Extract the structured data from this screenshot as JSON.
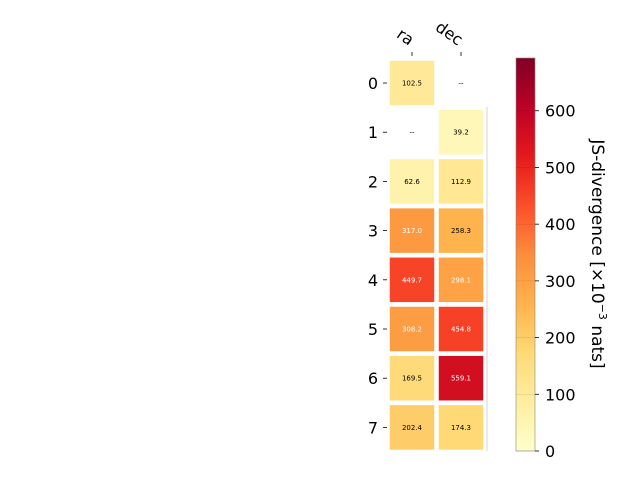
{
  "chart_data": {
    "type": "heatmap",
    "x_labels": [
      "ra",
      "dec"
    ],
    "y_labels": [
      "0",
      "1",
      "2",
      "3",
      "4",
      "5",
      "6",
      "7"
    ],
    "values": [
      [
        102.5,
        null
      ],
      [
        null,
        39.2
      ],
      [
        62.6,
        112.9
      ],
      [
        317.0,
        258.3
      ],
      [
        449.7,
        298.1
      ],
      [
        308.2,
        454.8
      ],
      [
        169.5,
        559.1
      ],
      [
        202.4,
        174.3
      ]
    ],
    "cell_text": [
      [
        "102.5",
        "--"
      ],
      [
        "--",
        "39.2"
      ],
      [
        "62.6",
        "112.9"
      ],
      [
        "317.0",
        "258.3"
      ],
      [
        "449.7",
        "298.1"
      ],
      [
        "308.2",
        "454.8"
      ],
      [
        "169.5",
        "559.1"
      ],
      [
        "202.4",
        "174.3"
      ]
    ],
    "colormap": "YlOrRd",
    "colorbar": {
      "label_main": "JS-divergence [×10",
      "label_exp": "−3",
      "label_end": " nats]",
      "range": [
        0,
        693
      ],
      "ticks": [
        0,
        100,
        200,
        300,
        400,
        500,
        600
      ],
      "tick_labels": [
        "0",
        "100",
        "200",
        "300",
        "400",
        "500",
        "600"
      ]
    }
  }
}
